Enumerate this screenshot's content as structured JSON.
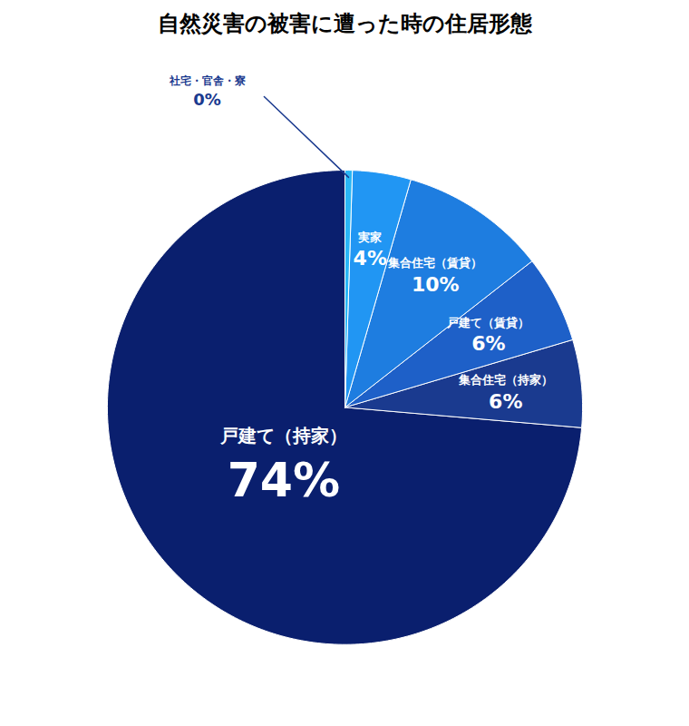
{
  "chart_data": {
    "type": "pie",
    "title": "自然災害の被害に遭った時の住居形態",
    "categories": [
      "戸建て（持家）",
      "集合住宅（持家）",
      "戸建て（賃貸）",
      "集合住宅（賃貸）",
      "実家",
      "社宅・官舎・寮"
    ],
    "values": [
      74,
      6,
      6,
      10,
      4,
      0.5
    ],
    "value_labels": [
      "74%",
      "6%",
      "6%",
      "10%",
      "4%",
      "0%"
    ],
    "colors": [
      "#0a1f6e",
      "#1a3a8f",
      "#1e60c8",
      "#1e7de0",
      "#2196f3",
      "#29b6f6"
    ],
    "data_labels": true
  }
}
